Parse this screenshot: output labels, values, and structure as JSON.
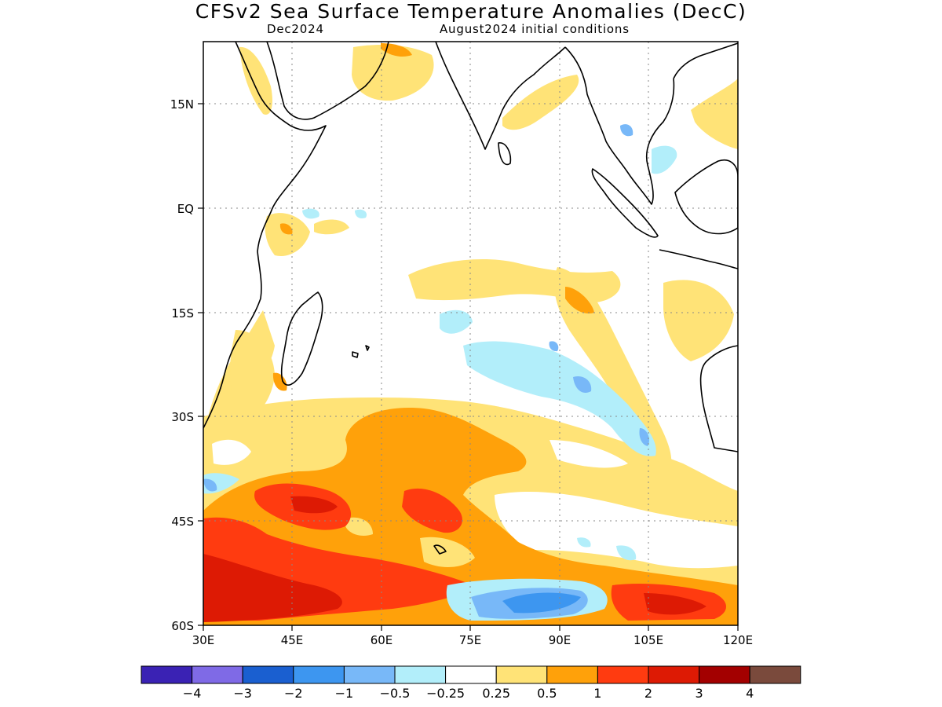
{
  "title": "CFSv2 Sea Surface Temperature Anomalies (DecC)",
  "subtitle_left": "Dec2024",
  "subtitle_right": "August2024 initial conditions",
  "map": {
    "lon_range": [
      30,
      120
    ],
    "lat_range": [
      -60,
      24
    ],
    "lat_ticks": [
      {
        "value": 15,
        "label": "15N"
      },
      {
        "value": 0,
        "label": "EQ"
      },
      {
        "value": -15,
        "label": "15S"
      },
      {
        "value": -30,
        "label": "30S"
      },
      {
        "value": -45,
        "label": "45S"
      },
      {
        "value": -60,
        "label": "60S"
      }
    ],
    "lon_ticks": [
      {
        "value": 30,
        "label": "30E"
      },
      {
        "value": 45,
        "label": "45E"
      },
      {
        "value": 60,
        "label": "60E"
      },
      {
        "value": 75,
        "label": "75E"
      },
      {
        "value": 90,
        "label": "90E"
      },
      {
        "value": 105,
        "label": "105E"
      },
      {
        "value": 120,
        "label": "120E"
      }
    ],
    "grid": true
  },
  "colorbar": {
    "colors": [
      "#3a22b4",
      "#7f6ae6",
      "#1a5fd0",
      "#3d96f0",
      "#78b8f8",
      "#b2eefa",
      "#ffffff",
      "#ffe377",
      "#ffa10a",
      "#ff3b10",
      "#dd1a04",
      "#a30000",
      "#7a4a3c"
    ],
    "labels": [
      "-4",
      "-3",
      "-2",
      "-1",
      "-0.5",
      "-0.25",
      "0.25",
      "0.5",
      "1",
      "2",
      "3",
      "4"
    ]
  }
}
